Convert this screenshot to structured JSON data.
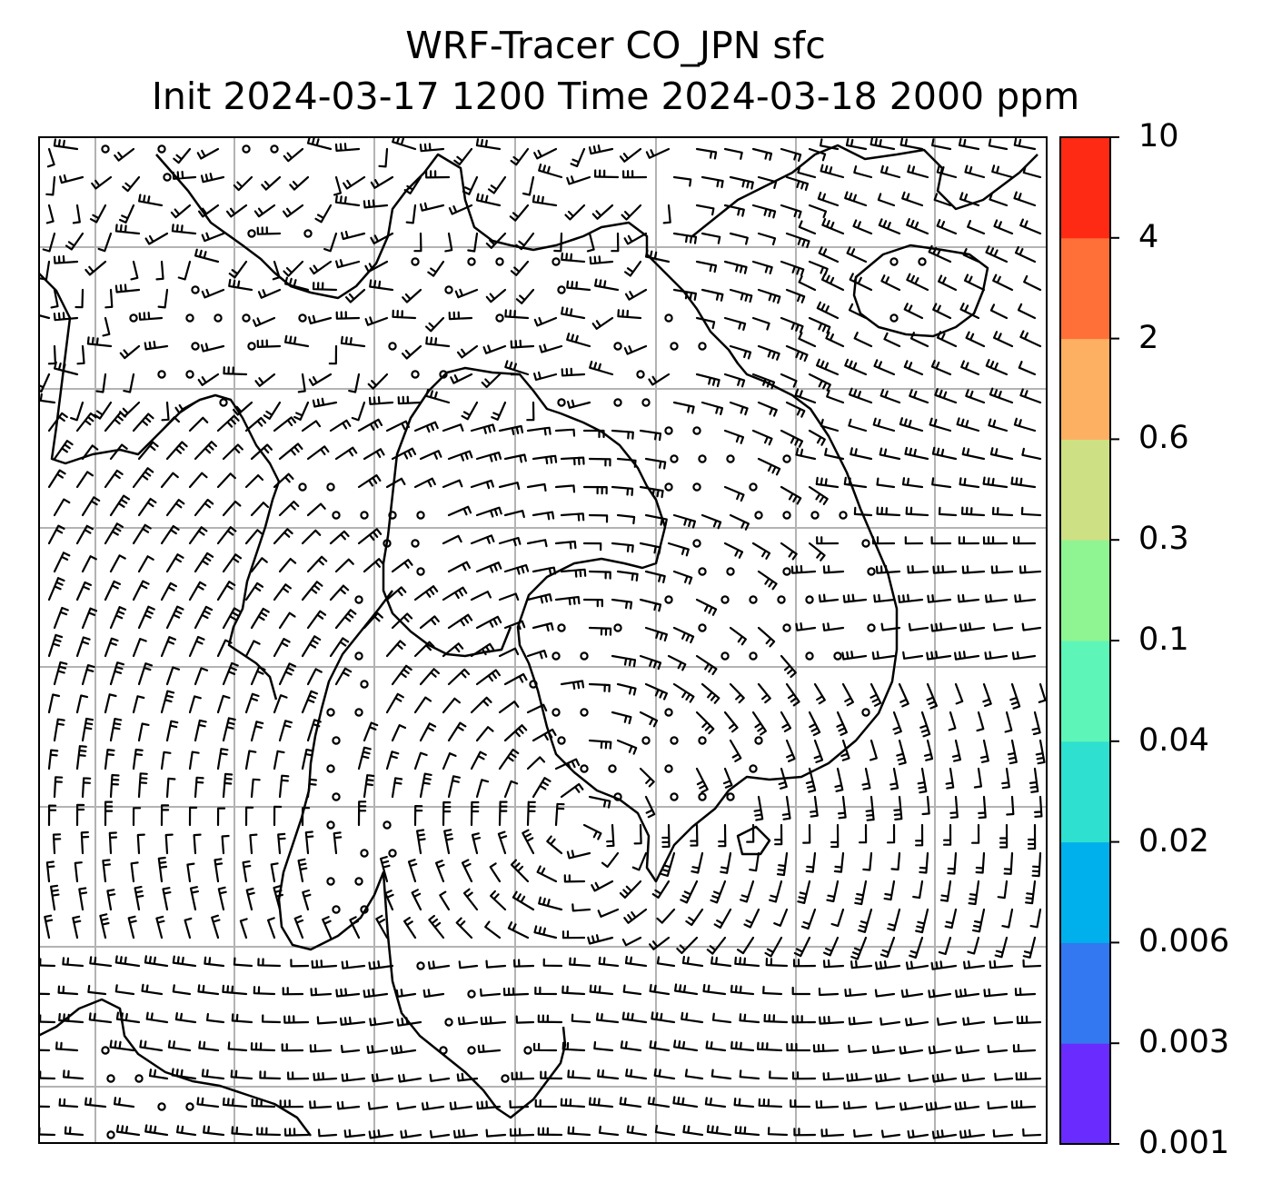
{
  "title": {
    "line1": "WRF-Tracer CO_JPN sfc",
    "line2": "Init 2024-03-17 1200 Time 2024-03-18 2000 ppm"
  },
  "map": {
    "gridlines": "on",
    "coastline_color": "#000000",
    "grid_color": "#b3b3b3",
    "barb_color": "#000000",
    "calm_marker": "circle"
  },
  "colorbar": {
    "ticks": [
      "0.001",
      "0.003",
      "0.006",
      "0.02",
      "0.04",
      "0.1",
      "0.3",
      "0.6",
      "2",
      "4",
      "10"
    ],
    "colors": [
      "#6a2bff",
      "#3378f0",
      "#00b0ec",
      "#2ee0d0",
      "#5ef5b8",
      "#8ef592",
      "#cde083",
      "#fdb061",
      "#ff7038",
      "#ff2a14"
    ]
  }
}
